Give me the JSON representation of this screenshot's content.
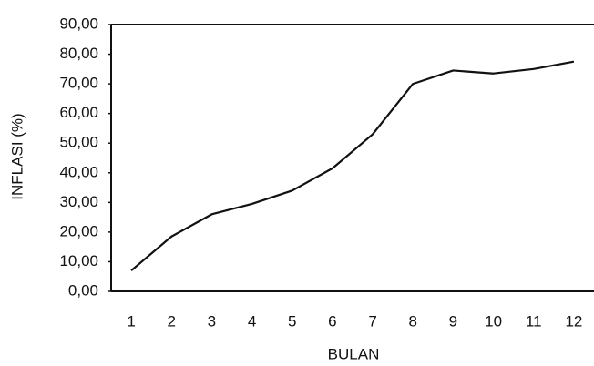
{
  "chart_data": {
    "type": "line",
    "x_label": "BULAN",
    "y_label": "INFLASI (%)",
    "categories": [
      "1",
      "2",
      "3",
      "4",
      "5",
      "6",
      "7",
      "8",
      "9",
      "10",
      "11",
      "12"
    ],
    "series": [
      {
        "color": "#111111",
        "values": [
          7,
          18.5,
          26,
          29.5,
          34,
          41.5,
          53,
          70,
          74.5,
          73.5,
          75,
          77.5
        ]
      }
    ],
    "ylim": [
      0,
      90
    ],
    "yticks": [
      {
        "value": 0,
        "label": "0,00"
      },
      {
        "value": 10,
        "label": "10,00"
      },
      {
        "value": 20,
        "label": "20,00"
      },
      {
        "value": 30,
        "label": "30,00"
      },
      {
        "value": 40,
        "label": "40,00"
      },
      {
        "value": 50,
        "label": "50,00"
      },
      {
        "value": 60,
        "label": "60,00"
      },
      {
        "value": 70,
        "label": "70,00"
      },
      {
        "value": 80,
        "label": "80,00"
      },
      {
        "value": 90,
        "label": "90,00"
      }
    ]
  }
}
